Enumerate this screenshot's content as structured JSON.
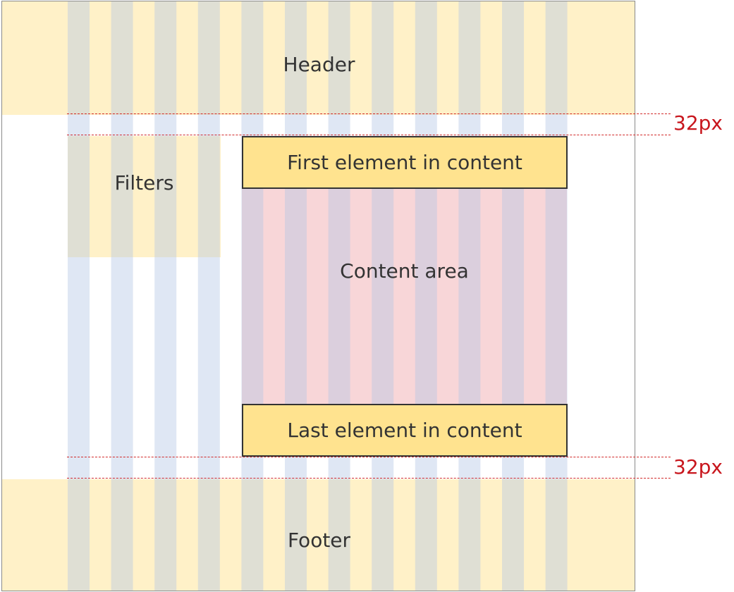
{
  "labels": {
    "header": "Header",
    "filters": "Filters",
    "first_element": "First element in content",
    "content_area": "Content area",
    "last_element": "Last element in content",
    "footer": "Footer"
  },
  "spacing": {
    "top_gap": "32px",
    "bottom_gap": "32px"
  },
  "colors": {
    "header_footer_fill": "#fff1c8",
    "grid_column_on_light": "#e0dfc0",
    "grid_column_on_white": "#dfe7f3",
    "content_area_fill": "#f8d6d8",
    "element_fill": "#ffe38f",
    "dashed_guide": "#d22a2a",
    "measure_text": "#c8161d"
  }
}
